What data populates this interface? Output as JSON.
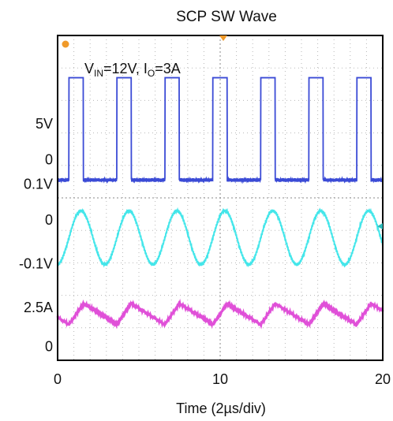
{
  "chart_data": {
    "type": "line",
    "title": "SCP SW Wave",
    "annotation": {
      "prefix": "V",
      "sub1": "IN",
      "mid": "=12V, I",
      "sub2": "O",
      "suffix": "=3A"
    },
    "xlabel": "Time (2µs/div)",
    "x_ticks": [
      "0",
      "10",
      "20"
    ],
    "xlim": [
      0,
      20
    ],
    "y_ticks": [
      "5V",
      "0",
      "0.1V",
      "0",
      "-0.1V",
      "2.5A",
      "0"
    ],
    "grid": true,
    "series": [
      {
        "color": "#3b4bd6",
        "period_div": 2.95,
        "phase_div": 0.7,
        "duty": 0.7,
        "high_div": 8.7,
        "low_div": 5.55
      },
      {
        "color": "#44e6ea",
        "period_div": 2.95,
        "phase_div": 0.7,
        "peak_div": 4.6,
        "trough_div": 2.95
      },
      {
        "color": "#e050d8",
        "period_div": 2.95,
        "phase_div": 0.7,
        "peak_div": 1.75,
        "trough_div": 1.1
      }
    ],
    "colors": {
      "grid": "#b8b8b8",
      "frame": "#000000",
      "marker": "#f09a2a"
    }
  }
}
